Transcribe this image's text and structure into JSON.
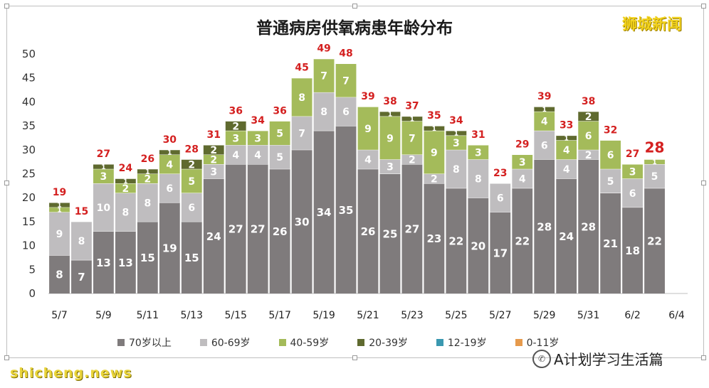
{
  "title": "普通病房供氧病患年龄分布",
  "brand": "狮城新闻",
  "watermark": "A计划学习生活篇",
  "source": "shicheng.news",
  "colors": {
    "s70": "#7f7b7c",
    "s60": "#bfbdbf",
    "s40": "#a4bb5a",
    "s20": "#5f6a2f",
    "s12": "#3a98b0",
    "s0": "#e69a4c",
    "total": "#d42020"
  },
  "chart_data": {
    "type": "bar",
    "stacked": true,
    "title": "普通病房供氧病患年龄分布",
    "ylim": [
      0,
      50
    ],
    "yticks": [
      0,
      5,
      10,
      15,
      20,
      25,
      30,
      35,
      40,
      45,
      50
    ],
    "categories": [
      "5/7",
      "5/8",
      "5/9",
      "5/10",
      "5/11",
      "5/12",
      "5/13",
      "5/14",
      "5/15",
      "5/16",
      "5/17",
      "5/18",
      "5/19",
      "5/20",
      "5/21",
      "5/22",
      "5/23",
      "5/24",
      "5/25",
      "5/26",
      "5/27",
      "5/28",
      "5/29",
      "5/30",
      "5/31",
      "6/1",
      "6/2",
      "6/3",
      "6/4"
    ],
    "xtick_labels": [
      "5/7",
      "",
      "5/9",
      "",
      "5/11",
      "",
      "5/13",
      "",
      "5/15",
      "",
      "5/17",
      "",
      "5/19",
      "",
      "5/21",
      "",
      "5/23",
      "",
      "5/25",
      "",
      "5/27",
      "",
      "5/29",
      "",
      "5/31",
      "",
      "6/2",
      "",
      "6/4"
    ],
    "series": [
      {
        "name": "70岁以上",
        "color": "#7f7b7c",
        "label_color": "#ffffff",
        "values": [
          8,
          7,
          13,
          13,
          15,
          19,
          15,
          24,
          27,
          27,
          26,
          30,
          34,
          35,
          26,
          25,
          27,
          23,
          22,
          20,
          17,
          22,
          28,
          24,
          28,
          21,
          18,
          22,
          0
        ]
      },
      {
        "name": "60-69岁",
        "color": "#bfbdbf",
        "label_color": "#ffffff",
        "values": [
          9,
          8,
          10,
          8,
          8,
          6,
          6,
          3,
          4,
          4,
          5,
          7,
          8,
          6,
          4,
          3,
          2,
          2,
          8,
          8,
          6,
          4,
          6,
          4,
          2,
          5,
          6,
          5,
          0
        ]
      },
      {
        "name": "40-59岁",
        "color": "#a4bb5a",
        "label_color": "#ffffff",
        "values": [
          1,
          0,
          3,
          2,
          2,
          4,
          5,
          2,
          3,
          3,
          5,
          8,
          7,
          7,
          9,
          9,
          7,
          9,
          3,
          3,
          0,
          3,
          4,
          4,
          6,
          6,
          3,
          1,
          0
        ]
      },
      {
        "name": "20-39岁",
        "color": "#5f6a2f",
        "label_color": "#ffffff",
        "values": [
          1,
          0,
          1,
          1,
          1,
          1,
          2,
          2,
          2,
          0,
          0,
          0,
          0,
          0,
          0,
          1,
          1,
          1,
          1,
          0,
          0,
          0,
          1,
          1,
          2,
          0,
          0,
          0,
          0
        ]
      },
      {
        "name": "12-19岁",
        "color": "#3a98b0",
        "label_color": "#ffffff",
        "values": [
          0,
          0,
          0,
          0,
          0,
          0,
          0,
          0,
          0,
          0,
          0,
          0,
          0,
          0,
          0,
          0,
          0,
          0,
          0,
          0,
          0,
          0,
          0,
          0,
          0,
          0,
          0,
          0,
          0
        ]
      },
      {
        "name": "0-11岁",
        "color": "#e69a4c",
        "label_color": "#ffffff",
        "values": [
          0,
          0,
          0,
          0,
          0,
          0,
          0,
          0,
          0,
          0,
          0,
          0,
          0,
          0,
          0,
          0,
          0,
          0,
          0,
          0,
          0,
          0,
          0,
          0,
          0,
          0,
          0,
          0,
          0
        ]
      }
    ],
    "totals": [
      19,
      15,
      27,
      24,
      26,
      30,
      28,
      31,
      36,
      34,
      36,
      45,
      49,
      48,
      39,
      38,
      37,
      35,
      34,
      31,
      23,
      29,
      39,
      33,
      38,
      32,
      27,
      28,
      ""
    ],
    "highlight_total_index": 27,
    "legend_position": "bottom",
    "grid": false
  }
}
